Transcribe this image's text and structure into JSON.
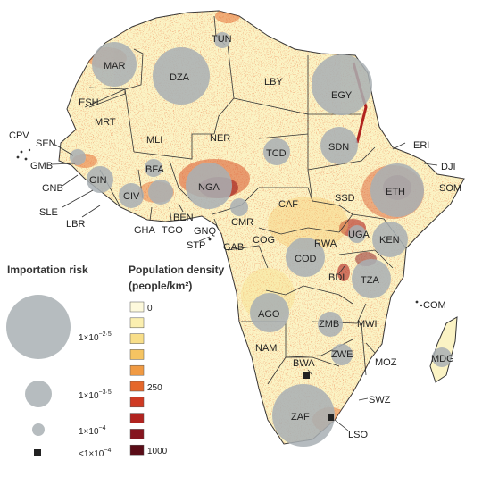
{
  "legend": {
    "risk_title": "Importation risk",
    "risk_levels": [
      {
        "label": "1×10",
        "sup": "−2·5"
      },
      {
        "label": "1×10",
        "sup": "−3·5"
      },
      {
        "label": "1×10",
        "sup": "−4"
      },
      {
        "label": "<1×10",
        "sup": "−4"
      }
    ],
    "density_title": "Population density",
    "density_unit": "(people/km²)",
    "density_swatches": [
      {
        "color": "#fdf9dc",
        "label": "0"
      },
      {
        "color": "#fbefb0",
        "label": ""
      },
      {
        "color": "#f8de89",
        "label": ""
      },
      {
        "color": "#f5c462",
        "label": ""
      },
      {
        "color": "#f09a43",
        "label": ""
      },
      {
        "color": "#e5672b",
        "label": "250"
      },
      {
        "color": "#cf3a23",
        "label": ""
      },
      {
        "color": "#b1231f",
        "label": ""
      },
      {
        "color": "#86151f",
        "label": ""
      },
      {
        "color": "#5a0c17",
        "label": "1000"
      }
    ]
  },
  "map": {
    "land_color": "#fbf3c4",
    "risk_circle_color": "#a9b0b4",
    "countries": [
      "TUN",
      "MAR",
      "DZA",
      "LBY",
      "EGY",
      "ESH",
      "MRT",
      "MLI",
      "NER",
      "TCD",
      "SDN",
      "ERI",
      "DJI",
      "CPV",
      "SEN",
      "GMB",
      "GNB",
      "GIN",
      "SLE",
      "LBR",
      "CIV",
      "GHA",
      "TGO",
      "BFA",
      "BEN",
      "NGA",
      "CMR",
      "GNQ",
      "STP",
      "GAB",
      "COG",
      "CAF",
      "SSD",
      "ETH",
      "SOM",
      "UGA",
      "KEN",
      "RWA",
      "BDI",
      "COD",
      "TZA",
      "AGO",
      "ZMB",
      "MWI",
      "COM",
      "MOZ",
      "MDG",
      "ZWE",
      "NAM",
      "BWA",
      "ZAF",
      "SWZ",
      "LSO"
    ]
  }
}
